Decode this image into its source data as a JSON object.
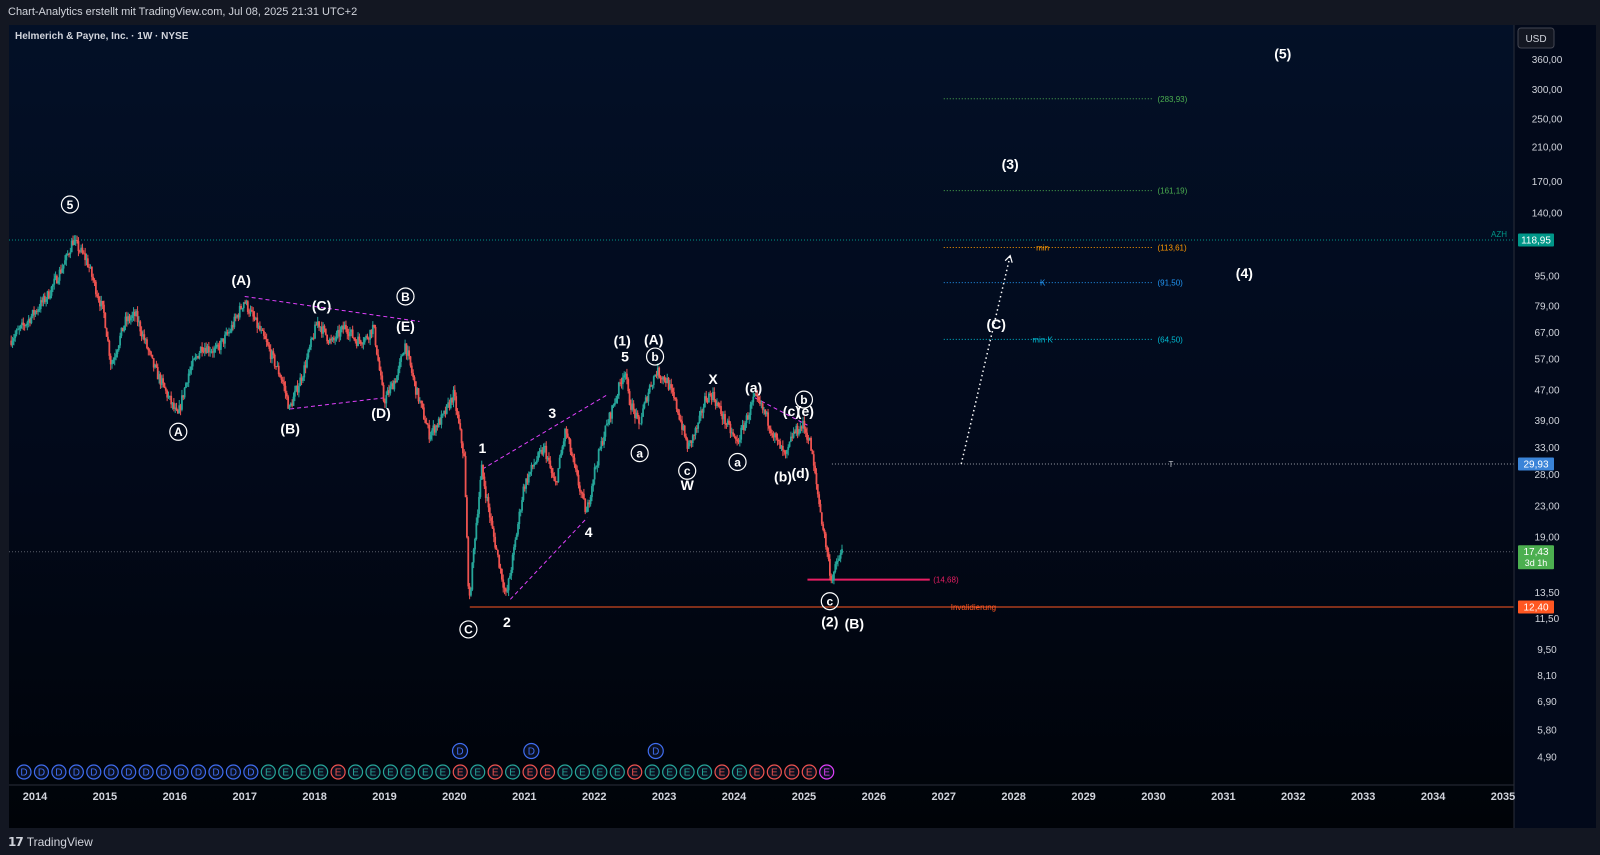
{
  "header": {
    "attribution": "Chart-Analytics erstellt mit TradingView.com, Jul 08, 2025 21:31 UTC+2"
  },
  "footer": {
    "brand": "TradingView",
    "logo": "tradingview-logo"
  },
  "symbol": {
    "title": "Helmerich & Payne, Inc. · 1W · NYSE"
  },
  "currency": "USD",
  "colors": {
    "up": "#26a69a",
    "down": "#ef5350",
    "background": "#02091a",
    "invalidation": "#ff5722",
    "support": "#e91e63",
    "cyan_label": "#00bcd4",
    "fib_green": "#4caf50",
    "fib_orange": "#ff9800",
    "fib_blue": "#2196f3",
    "current_price": "#4caf50",
    "azh": "#009688"
  },
  "chart_data": {
    "type": "candlestick",
    "title": "Helmerich & Payne, Inc. · 1W · NYSE",
    "y_scale": "log",
    "ylim": [
      3.8,
      430
    ],
    "xlim": [
      2013.65,
      2035.1
    ],
    "y_ticks": [
      "360,00",
      "300,00",
      "250,00",
      "210,00",
      "170,00",
      "140,00",
      "95,00",
      "79,00",
      "67,00",
      "57,00",
      "47,00",
      "39,00",
      "33,00",
      "28,00",
      "23,00",
      "19,00",
      "13,50",
      "11,50",
      "9,50",
      "8,10",
      "6,90",
      "5,80",
      "4,90"
    ],
    "x_ticks": [
      "2014",
      "2015",
      "2016",
      "2017",
      "2018",
      "2019",
      "2020",
      "2021",
      "2022",
      "2023",
      "2024",
      "2025",
      "2026",
      "2027",
      "2028",
      "2029",
      "2030",
      "2031",
      "2032",
      "2033",
      "2034",
      "2035"
    ],
    "price_path": [
      [
        2013.65,
        64
      ],
      [
        2013.9,
        72
      ],
      [
        2014.2,
        85
      ],
      [
        2014.45,
        105
      ],
      [
        2014.55,
        118.95
      ],
      [
        2014.75,
        105
      ],
      [
        2015.0,
        75
      ],
      [
        2015.1,
        55
      ],
      [
        2015.3,
        72
      ],
      [
        2015.45,
        75
      ],
      [
        2015.7,
        55
      ],
      [
        2015.85,
        48
      ],
      [
        2016.05,
        40
      ],
      [
        2016.2,
        52
      ],
      [
        2016.4,
        62
      ],
      [
        2016.6,
        60
      ],
      [
        2016.8,
        68
      ],
      [
        2016.95,
        78
      ],
      [
        2017.0,
        82
      ],
      [
        2017.3,
        64
      ],
      [
        2017.55,
        50
      ],
      [
        2017.65,
        42
      ],
      [
        2017.85,
        53
      ],
      [
        2018.05,
        72
      ],
      [
        2018.25,
        63
      ],
      [
        2018.45,
        70
      ],
      [
        2018.6,
        64
      ],
      [
        2018.75,
        65
      ],
      [
        2018.85,
        70
      ],
      [
        2019.0,
        44
      ],
      [
        2019.2,
        52
      ],
      [
        2019.3,
        63
      ],
      [
        2019.45,
        48
      ],
      [
        2019.65,
        36
      ],
      [
        2019.85,
        40
      ],
      [
        2020.0,
        46
      ],
      [
        2020.15,
        31
      ],
      [
        2020.22,
        12.4
      ],
      [
        2020.3,
        19
      ],
      [
        2020.4,
        29
      ],
      [
        2020.55,
        20
      ],
      [
        2020.75,
        13.2
      ],
      [
        2020.85,
        17
      ],
      [
        2021.0,
        26
      ],
      [
        2021.15,
        30
      ],
      [
        2021.3,
        33
      ],
      [
        2021.45,
        26
      ],
      [
        2021.6,
        37
      ],
      [
        2021.75,
        28
      ],
      [
        2021.9,
        22
      ],
      [
        2022.0,
        28
      ],
      [
        2022.15,
        36
      ],
      [
        2022.3,
        44
      ],
      [
        2022.45,
        54
      ],
      [
        2022.5,
        45
      ],
      [
        2022.65,
        38
      ],
      [
        2022.8,
        48
      ],
      [
        2022.9,
        53
      ],
      [
        2023.05,
        50
      ],
      [
        2023.2,
        42
      ],
      [
        2023.35,
        33
      ],
      [
        2023.5,
        38
      ],
      [
        2023.6,
        45
      ],
      [
        2023.7,
        46
      ],
      [
        2023.85,
        40
      ],
      [
        2024.05,
        34
      ],
      [
        2024.2,
        40
      ],
      [
        2024.3,
        45
      ],
      [
        2024.45,
        41
      ],
      [
        2024.6,
        35
      ],
      [
        2024.75,
        31
      ],
      [
        2024.85,
        36
      ],
      [
        2025.0,
        38
      ],
      [
        2025.1,
        34
      ],
      [
        2025.25,
        22
      ],
      [
        2025.35,
        17
      ],
      [
        2025.4,
        14.68
      ],
      [
        2025.5,
        16.5
      ],
      [
        2025.55,
        17.43
      ]
    ],
    "price_labels": [
      {
        "text": "118,95",
        "value": 118.95,
        "color": "#009688"
      },
      {
        "text": "29,93",
        "value": 29.93,
        "color": "#3a84d8"
      },
      {
        "text": "17,43",
        "sub": "3d 1h",
        "value": 17.43,
        "color": "#4caf50"
      },
      {
        "text": "12,40",
        "value": 12.4,
        "color": "#ff5722"
      }
    ],
    "azh_label": "AZH",
    "levels": [
      {
        "name": "fib-283",
        "y": 283.93,
        "x0": 2027.0,
        "x1": 2030.0,
        "label": "(283,93)",
        "tag": "",
        "color": "#4caf50"
      },
      {
        "name": "fib-161",
        "y": 161.19,
        "x0": 2027.0,
        "x1": 2030.0,
        "label": "(161,19)",
        "tag": "",
        "color": "#4caf50"
      },
      {
        "name": "fib-113",
        "y": 113.61,
        "x0": 2027.0,
        "x1": 2030.0,
        "label": "(113,61)",
        "tag": "min",
        "color": "#ff9800"
      },
      {
        "name": "fib-91",
        "y": 91.5,
        "x0": 2027.0,
        "x1": 2030.0,
        "label": "(91,50)",
        "tag": "K",
        "color": "#2196f3"
      },
      {
        "name": "fib-64",
        "y": 64.5,
        "x0": 2027.0,
        "x1": 2030.0,
        "label": "(64,50)",
        "tag": "min K",
        "color": "#00bcd4"
      }
    ],
    "target": {
      "y": 29.93,
      "label": "T"
    },
    "support": {
      "y": 14.68,
      "label": "(14,68)"
    },
    "invalidation": {
      "y": 12.4,
      "label": "Invalidierung"
    },
    "projection": {
      "from": [
        2027.25,
        29.93
      ],
      "to": [
        2027.95,
        108
      ]
    },
    "trendlines": [
      {
        "from": [
          2017.0,
          84
        ],
        "to": [
          2019.5,
          72
        ]
      },
      {
        "from": [
          2017.65,
          42
        ],
        "to": [
          2019.0,
          45
        ]
      },
      {
        "from": [
          2020.4,
          29
        ],
        "to": [
          2022.2,
          46
        ]
      },
      {
        "from": [
          2020.8,
          13
        ],
        "to": [
          2021.9,
          21.5
        ]
      },
      {
        "from": [
          2024.3,
          45
        ],
        "to": [
          2025.05,
          38
        ]
      }
    ],
    "wave_labels": [
      {
        "text": "5",
        "x": 2014.5,
        "y": 148,
        "circle": true,
        "color": "#ffffff"
      },
      {
        "text": "A",
        "x": 2016.05,
        "y": 36.5,
        "circle": true,
        "color": "#ffffff"
      },
      {
        "text": "(A)",
        "x": 2016.95,
        "y": 93,
        "circle": false,
        "color": "#ffffff"
      },
      {
        "text": "(C)",
        "x": 2018.1,
        "y": 79.5,
        "circle": false,
        "color": "#ffffff"
      },
      {
        "text": "B",
        "x": 2019.3,
        "y": 84,
        "circle": true,
        "color": "#ffffff"
      },
      {
        "text": "(E)",
        "x": 2019.3,
        "y": 70,
        "circle": false,
        "color": "#ffffff"
      },
      {
        "text": "(B)",
        "x": 2017.65,
        "y": 37.2,
        "circle": false,
        "color": "#ffffff"
      },
      {
        "text": "(D)",
        "x": 2018.95,
        "y": 41,
        "circle": false,
        "color": "#ffffff"
      },
      {
        "text": "C",
        "x": 2020.2,
        "y": 10.8,
        "circle": true,
        "color": "#ffffff"
      },
      {
        "text": "1",
        "x": 2020.4,
        "y": 33,
        "circle": false,
        "color": "#ffffff"
      },
      {
        "text": "2",
        "x": 2020.75,
        "y": 11.3,
        "circle": false,
        "color": "#ffffff"
      },
      {
        "text": "3",
        "x": 2021.4,
        "y": 41,
        "circle": false,
        "color": "#ffffff"
      },
      {
        "text": "4",
        "x": 2021.92,
        "y": 19.7,
        "circle": false,
        "color": "#ffffff"
      },
      {
        "text": "(1)",
        "x": 2022.4,
        "y": 64,
        "circle": false,
        "color": "#ffffff"
      },
      {
        "text": "5",
        "x": 2022.44,
        "y": 58,
        "circle": false,
        "color": "#ffffff"
      },
      {
        "text": "(A)",
        "x": 2022.85,
        "y": 64.5,
        "circle": false,
        "color": "#00bcd4"
      },
      {
        "text": "b",
        "x": 2022.87,
        "y": 58,
        "circle": true,
        "color": "#ffffff"
      },
      {
        "text": "a",
        "x": 2022.65,
        "y": 32,
        "circle": true,
        "color": "#ffffff"
      },
      {
        "text": "c",
        "x": 2023.33,
        "y": 28.7,
        "circle": true,
        "color": "#ffffff"
      },
      {
        "text": "W",
        "x": 2023.33,
        "y": 26.3,
        "circle": false,
        "color": "#ffffff"
      },
      {
        "text": "X",
        "x": 2023.7,
        "y": 50.5,
        "circle": false,
        "color": "#ffffff"
      },
      {
        "text": "a",
        "x": 2024.05,
        "y": 30.3,
        "circle": true,
        "color": "#ffffff"
      },
      {
        "text": "(a)",
        "x": 2024.28,
        "y": 48,
        "circle": false,
        "color": "#ffffff"
      },
      {
        "text": "b",
        "x": 2025.0,
        "y": 44.5,
        "circle": true,
        "color": "#ffffff"
      },
      {
        "text": "(c)",
        "x": 2024.82,
        "y": 41.5,
        "circle": false,
        "color": "#ffffff"
      },
      {
        "text": "(e)",
        "x": 2025.02,
        "y": 41.5,
        "circle": false,
        "color": "#ffffff"
      },
      {
        "text": "(b)",
        "x": 2024.7,
        "y": 27.7,
        "circle": false,
        "color": "#ffffff"
      },
      {
        "text": "(d)",
        "x": 2024.95,
        "y": 28.3,
        "circle": false,
        "color": "#ffffff"
      },
      {
        "text": "c",
        "x": 2025.37,
        "y": 12.85,
        "circle": true,
        "color": "#ffffff"
      },
      {
        "text": "(2)",
        "x": 2025.37,
        "y": 11.35,
        "circle": false,
        "color": "#ffffff"
      },
      {
        "text": "(B)",
        "x": 2025.72,
        "y": 11.2,
        "circle": false,
        "color": "#00bcd4"
      },
      {
        "text": "(C)",
        "x": 2027.75,
        "y": 71,
        "circle": false,
        "color": "#00bcd4"
      },
      {
        "text": "(3)",
        "x": 2027.95,
        "y": 190,
        "circle": false,
        "color": "#ffffff"
      },
      {
        "text": "(4)",
        "x": 2031.3,
        "y": 97,
        "circle": false,
        "color": "#ffffff"
      },
      {
        "text": "(5)",
        "x": 2031.85,
        "y": 375,
        "circle": false,
        "color": "#ffffff"
      }
    ],
    "event_markers": [
      "D",
      "D",
      "D",
      "D",
      "D",
      "D",
      "D",
      "D",
      "D",
      "D",
      "D",
      "D",
      "D",
      "D",
      "E",
      "E",
      "E",
      "E",
      "E",
      "E",
      "E",
      "E",
      "E",
      "E",
      "E",
      "E",
      "E",
      "E",
      "E",
      "E",
      "E",
      "E",
      "E",
      "E",
      "E",
      "E",
      "E",
      "E",
      "E",
      "E",
      "E",
      "E",
      "E",
      "E",
      "E",
      "E",
      "E"
    ],
    "event_colors": [
      "#3f6df0",
      "#3f6df0",
      "#3f6df0",
      "#3f6df0",
      "#3f6df0",
      "#3f6df0",
      "#3f6df0",
      "#3f6df0",
      "#3f6df0",
      "#3f6df0",
      "#3f6df0",
      "#3f6df0",
      "#3f6df0",
      "#3f6df0",
      "#26a69a",
      "#26a69a",
      "#26a69a",
      "#26a69a",
      "#ef5350",
      "#26a69a",
      "#26a69a",
      "#26a69a",
      "#26a69a",
      "#26a69a",
      "#26a69a",
      "#ef5350",
      "#26a69a",
      "#ef5350",
      "#26a69a",
      "#ef5350",
      "#ef5350",
      "#26a69a",
      "#26a69a",
      "#26a69a",
      "#26a69a",
      "#ef5350",
      "#26a69a",
      "#26a69a",
      "#26a69a",
      "#26a69a",
      "#ef5350",
      "#26a69a",
      "#ef5350",
      "#ef5350",
      "#ef5350",
      "#ef5350",
      "#e040fb"
    ],
    "dividend_markers": [
      {
        "text": "D",
        "x": 2020.08
      },
      {
        "text": "D",
        "x": 2021.1
      },
      {
        "text": "D",
        "x": 2022.88
      }
    ]
  }
}
